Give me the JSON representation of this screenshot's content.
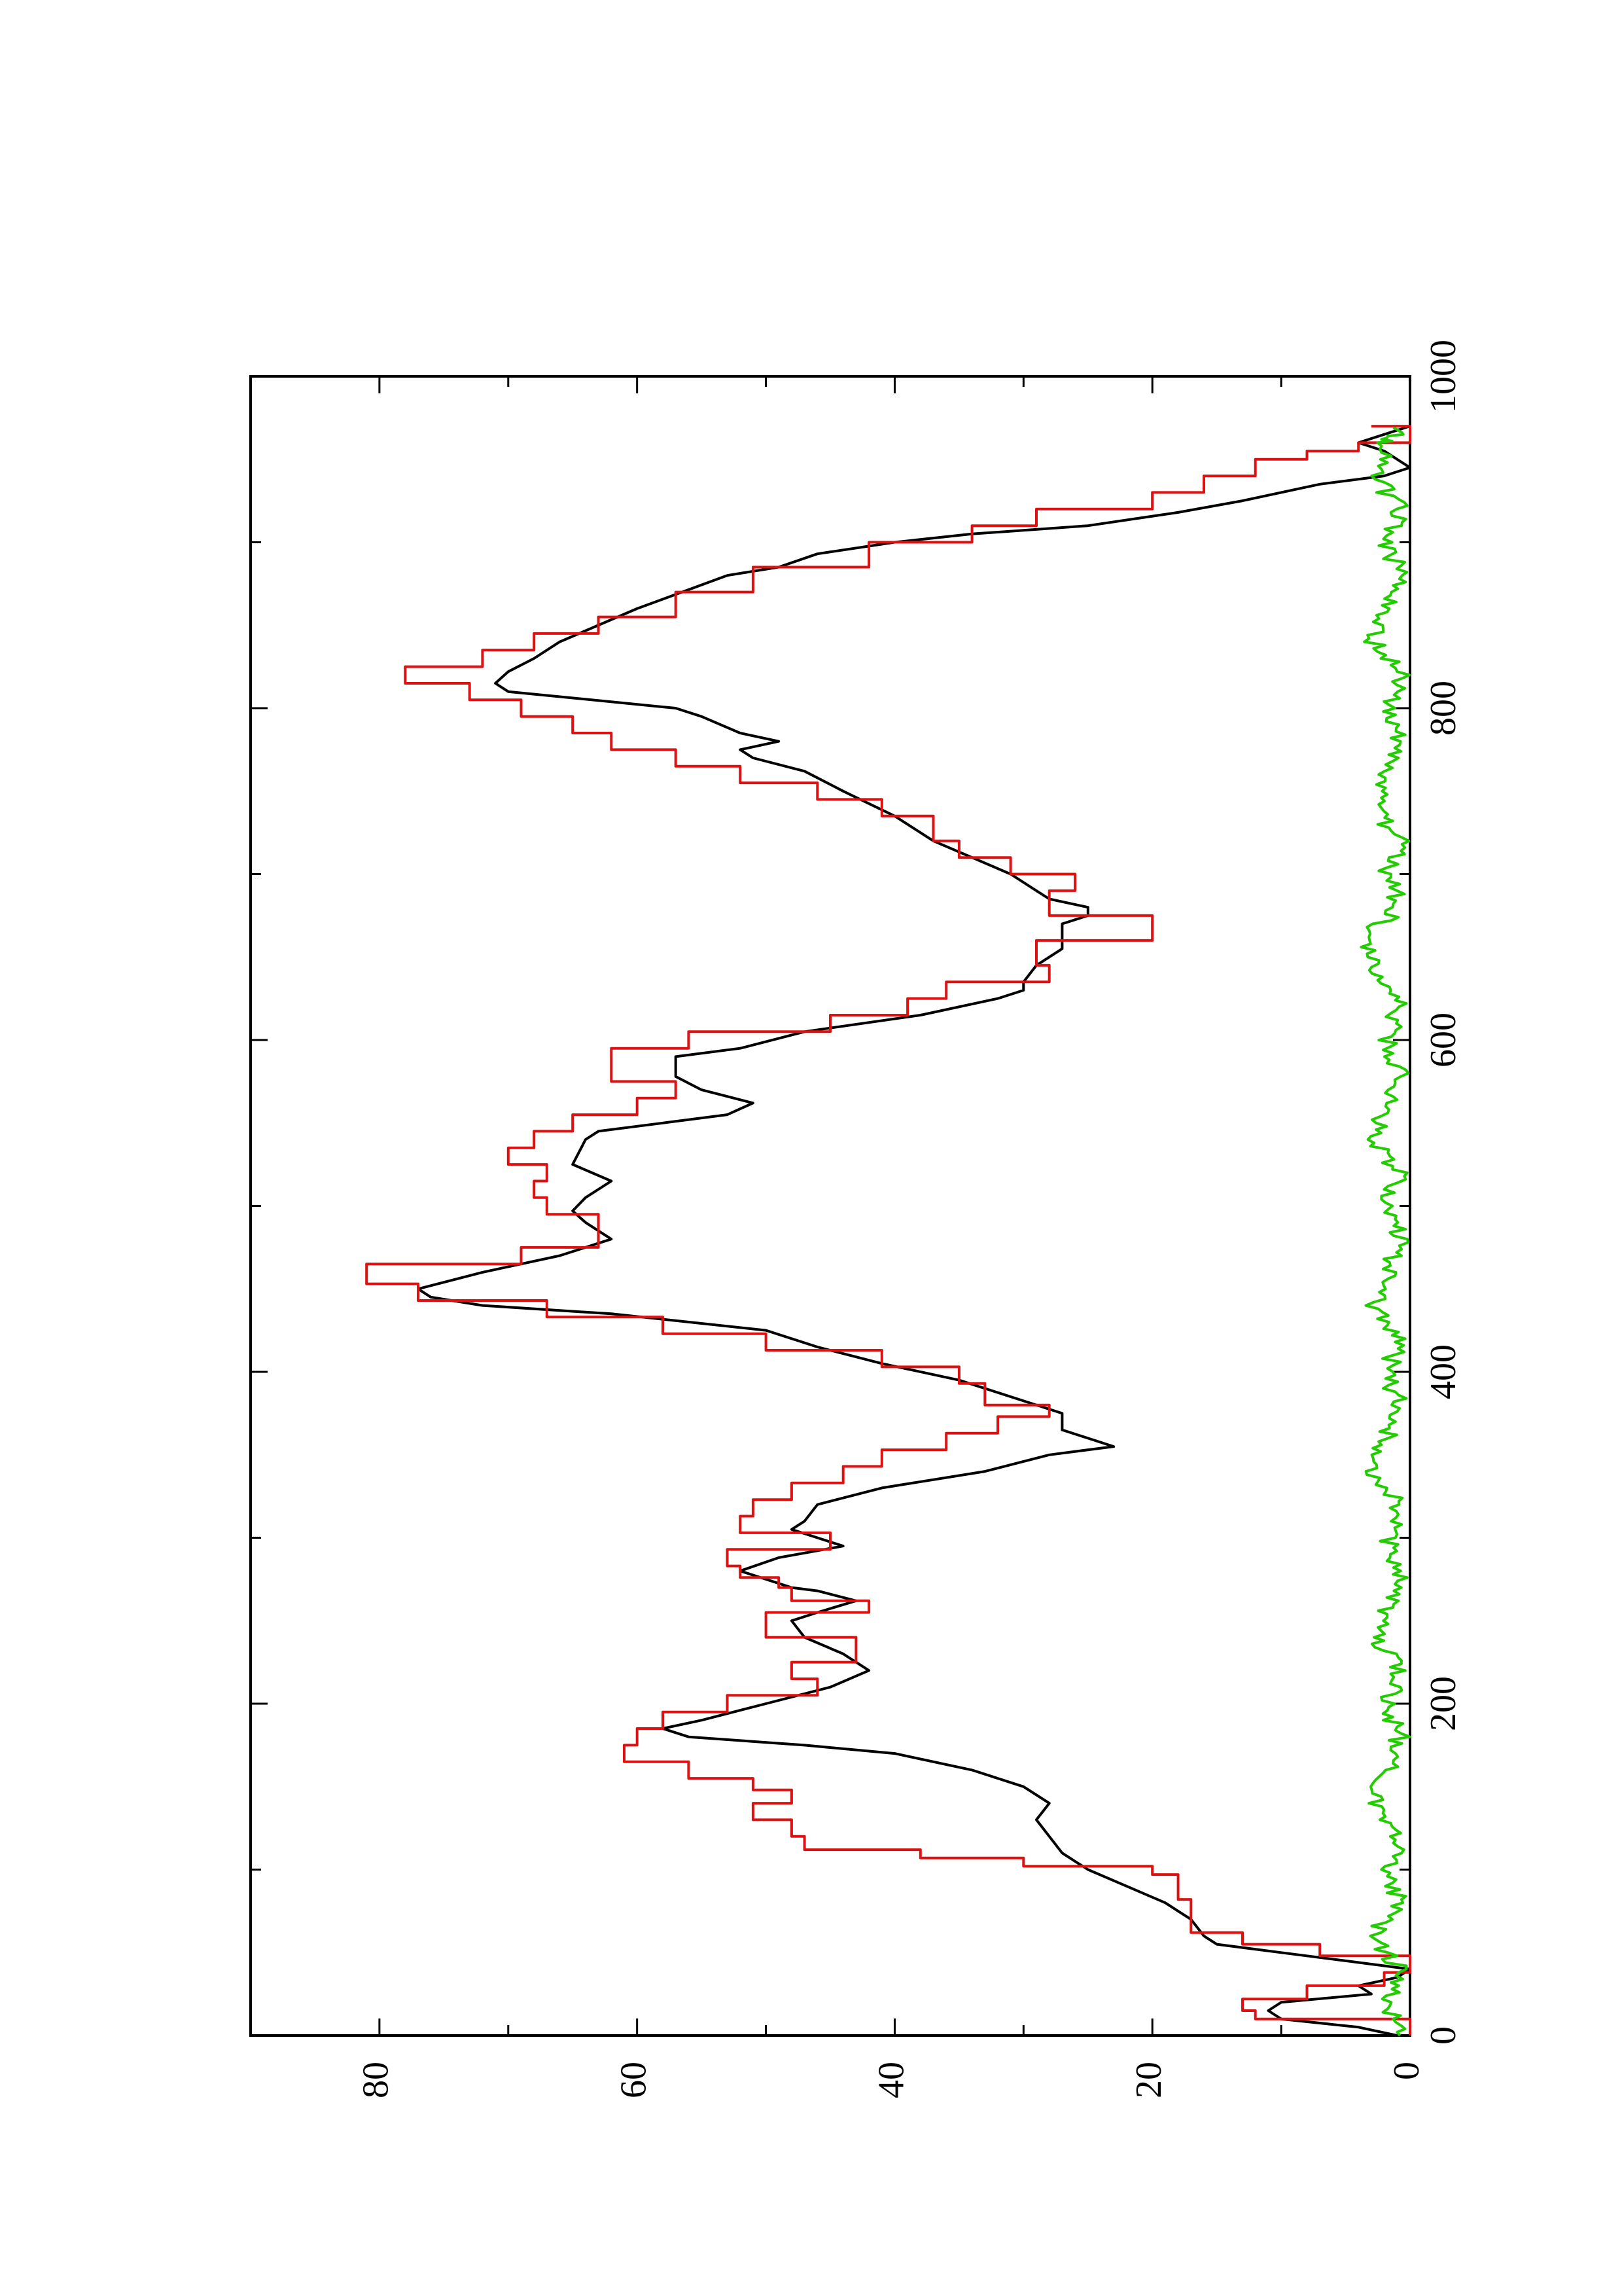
{
  "chart_data": {
    "type": "line",
    "orientation": "rotated 90 degrees counter-clockwise (x axis runs bottom-to-top along the right edge, y axis along the bottom)",
    "title": "",
    "xlabel": "",
    "ylabel": "",
    "xlim": [
      0,
      1000
    ],
    "ylim": [
      0,
      90
    ],
    "x_ticks": [
      0,
      200,
      400,
      600,
      800,
      1000
    ],
    "y_ticks": [
      0,
      20,
      40,
      60,
      80
    ],
    "grid": false,
    "legend": "none",
    "series": [
      {
        "color": "#000000",
        "style": "smooth",
        "points": [
          [
            0,
            1
          ],
          [
            5,
            4
          ],
          [
            10,
            10
          ],
          [
            15,
            11
          ],
          [
            20,
            10
          ],
          [
            25,
            3
          ],
          [
            30,
            4
          ],
          [
            35,
            1
          ],
          [
            40,
            0
          ],
          [
            45,
            5
          ],
          [
            50,
            10
          ],
          [
            55,
            15
          ],
          [
            60,
            16
          ],
          [
            70,
            17
          ],
          [
            75,
            18
          ],
          [
            80,
            19
          ],
          [
            90,
            22
          ],
          [
            100,
            25
          ],
          [
            110,
            27
          ],
          [
            120,
            28
          ],
          [
            130,
            29
          ],
          [
            140,
            28
          ],
          [
            150,
            30
          ],
          [
            160,
            34
          ],
          [
            170,
            40
          ],
          [
            175,
            47
          ],
          [
            180,
            56
          ],
          [
            185,
            58
          ],
          [
            190,
            55
          ],
          [
            200,
            50
          ],
          [
            210,
            45
          ],
          [
            220,
            42
          ],
          [
            230,
            44
          ],
          [
            240,
            47
          ],
          [
            250,
            48
          ],
          [
            255,
            46
          ],
          [
            262,
            43
          ],
          [
            268,
            46
          ],
          [
            270,
            48
          ],
          [
            280,
            52
          ],
          [
            288,
            49
          ],
          [
            295,
            44
          ],
          [
            300,
            46
          ],
          [
            305,
            48
          ],
          [
            310,
            47
          ],
          [
            320,
            46
          ],
          [
            330,
            41
          ],
          [
            340,
            33
          ],
          [
            350,
            28
          ],
          [
            355,
            23
          ],
          [
            360,
            25
          ],
          [
            365,
            27
          ],
          [
            370,
            27
          ],
          [
            375,
            27
          ],
          [
            385,
            31
          ],
          [
            395,
            35
          ],
          [
            405,
            41
          ],
          [
            415,
            46
          ],
          [
            425,
            50
          ],
          [
            435,
            62
          ],
          [
            440,
            72
          ],
          [
            445,
            76
          ],
          [
            450,
            77
          ],
          [
            460,
            72
          ],
          [
            470,
            66
          ],
          [
            480,
            62
          ],
          [
            490,
            64
          ],
          [
            497,
            65
          ],
          [
            505,
            64
          ],
          [
            515,
            62
          ],
          [
            525,
            65
          ],
          [
            540,
            64
          ],
          [
            545,
            63
          ],
          [
            550,
            58
          ],
          [
            555,
            53
          ],
          [
            562,
            51
          ],
          [
            570,
            55
          ],
          [
            578,
            57
          ],
          [
            590,
            57
          ],
          [
            595,
            52
          ],
          [
            605,
            47
          ],
          [
            615,
            38
          ],
          [
            625,
            32
          ],
          [
            630,
            30
          ],
          [
            635,
            30
          ],
          [
            645,
            29
          ],
          [
            655,
            27
          ],
          [
            665,
            27
          ],
          [
            670,
            27
          ],
          [
            675,
            25
          ],
          [
            680,
            25
          ],
          [
            685,
            28
          ],
          [
            690,
            29
          ],
          [
            700,
            31
          ],
          [
            720,
            37
          ],
          [
            735,
            40
          ],
          [
            750,
            44
          ],
          [
            762,
            47
          ],
          [
            770,
            51
          ],
          [
            775,
            52
          ],
          [
            780,
            49
          ],
          [
            785,
            52
          ],
          [
            795,
            55
          ],
          [
            800,
            57
          ],
          [
            810,
            70
          ],
          [
            815,
            71
          ],
          [
            822,
            70
          ],
          [
            830,
            68
          ],
          [
            840,
            66
          ],
          [
            860,
            60
          ],
          [
            880,
            53
          ],
          [
            885,
            49
          ],
          [
            893,
            46
          ],
          [
            900,
            40
          ],
          [
            905,
            34
          ],
          [
            910,
            25
          ],
          [
            918,
            18
          ],
          [
            925,
            13
          ],
          [
            935,
            7
          ],
          [
            940,
            2
          ],
          [
            945,
            0
          ],
          [
            955,
            2
          ],
          [
            960,
            4
          ],
          [
            965,
            2
          ],
          [
            970,
            0
          ]
        ]
      },
      {
        "color": "#dd1111",
        "style": "step",
        "points": [
          [
            0,
            0
          ],
          [
            10,
            12
          ],
          [
            15,
            13
          ],
          [
            22,
            8
          ],
          [
            30,
            2
          ],
          [
            38,
            0
          ],
          [
            48,
            7
          ],
          [
            55,
            13
          ],
          [
            62,
            17
          ],
          [
            82,
            18
          ],
          [
            97,
            20
          ],
          [
            102,
            30
          ],
          [
            107,
            38
          ],
          [
            112,
            47
          ],
          [
            120,
            48
          ],
          [
            130,
            51
          ],
          [
            140,
            48
          ],
          [
            148,
            51
          ],
          [
            155,
            56
          ],
          [
            165,
            61
          ],
          [
            175,
            60
          ],
          [
            185,
            58
          ],
          [
            195,
            53
          ],
          [
            205,
            46
          ],
          [
            215,
            48
          ],
          [
            225,
            43
          ],
          [
            240,
            50
          ],
          [
            255,
            42
          ],
          [
            262,
            48
          ],
          [
            270,
            49
          ],
          [
            276,
            52
          ],
          [
            283,
            53
          ],
          [
            293,
            45
          ],
          [
            303,
            52
          ],
          [
            313,
            51
          ],
          [
            323,
            48
          ],
          [
            333,
            44
          ],
          [
            343,
            41
          ],
          [
            353,
            36
          ],
          [
            363,
            32
          ],
          [
            373,
            28
          ],
          [
            380,
            33
          ],
          [
            393,
            35
          ],
          [
            403,
            41
          ],
          [
            413,
            50
          ],
          [
            423,
            58
          ],
          [
            433,
            67
          ],
          [
            443,
            77
          ],
          [
            453,
            81
          ],
          [
            465,
            69
          ],
          [
            475,
            63
          ],
          [
            485,
            63
          ],
          [
            495,
            67
          ],
          [
            505,
            68
          ],
          [
            515,
            67
          ],
          [
            525,
            70
          ],
          [
            535,
            68
          ],
          [
            545,
            65
          ],
          [
            555,
            60
          ],
          [
            565,
            57
          ],
          [
            575,
            62
          ],
          [
            585,
            62
          ],
          [
            595,
            56
          ],
          [
            605,
            45
          ],
          [
            615,
            39
          ],
          [
            625,
            36
          ],
          [
            635,
            28
          ],
          [
            645,
            29
          ],
          [
            660,
            20
          ],
          [
            675,
            28
          ],
          [
            690,
            26
          ],
          [
            700,
            31
          ],
          [
            710,
            35
          ],
          [
            720,
            37
          ],
          [
            735,
            41
          ],
          [
            745,
            46
          ],
          [
            755,
            52
          ],
          [
            765,
            57
          ],
          [
            775,
            62
          ],
          [
            785,
            65
          ],
          [
            795,
            69
          ],
          [
            805,
            73
          ],
          [
            815,
            78
          ],
          [
            825,
            72
          ],
          [
            835,
            68
          ],
          [
            845,
            63
          ],
          [
            855,
            57
          ],
          [
            870,
            51
          ],
          [
            885,
            42
          ],
          [
            900,
            34
          ],
          [
            910,
            29
          ],
          [
            920,
            20
          ],
          [
            930,
            16
          ],
          [
            940,
            12
          ],
          [
            950,
            8
          ],
          [
            955,
            4
          ],
          [
            960,
            0
          ],
          [
            970,
            3
          ]
        ]
      },
      {
        "color": "#22cc00",
        "style": "noise",
        "points": [
          [
            0,
            0
          ],
          [
            20,
            1
          ],
          [
            40,
            0
          ],
          [
            60,
            2
          ],
          [
            80,
            0
          ],
          [
            100,
            1
          ],
          [
            120,
            0
          ],
          [
            140,
            2
          ],
          [
            160,
            1
          ],
          [
            180,
            0
          ],
          [
            200,
            1
          ],
          [
            220,
            0
          ],
          [
            240,
            2
          ],
          [
            260,
            1
          ],
          [
            280,
            0
          ],
          [
            300,
            1
          ],
          [
            320,
            0
          ],
          [
            340,
            2
          ],
          [
            360,
            1
          ],
          [
            380,
            0
          ],
          [
            400,
            1
          ],
          [
            420,
            0
          ],
          [
            440,
            2
          ],
          [
            460,
            1
          ],
          [
            480,
            0
          ],
          [
            500,
            1
          ],
          [
            520,
            0
          ],
          [
            540,
            2
          ],
          [
            560,
            1
          ],
          [
            580,
            0
          ],
          [
            600,
            1
          ],
          [
            620,
            0
          ],
          [
            640,
            2
          ],
          [
            660,
            3
          ],
          [
            680,
            0
          ],
          [
            700,
            1
          ],
          [
            720,
            0
          ],
          [
            740,
            2
          ],
          [
            760,
            1
          ],
          [
            780,
            0
          ],
          [
            800,
            1
          ],
          [
            820,
            0
          ],
          [
            840,
            2
          ],
          [
            860,
            1
          ],
          [
            880,
            0
          ],
          [
            900,
            1
          ],
          [
            920,
            0
          ],
          [
            940,
            2
          ],
          [
            960,
            1
          ],
          [
            970,
            0
          ]
        ]
      }
    ]
  }
}
